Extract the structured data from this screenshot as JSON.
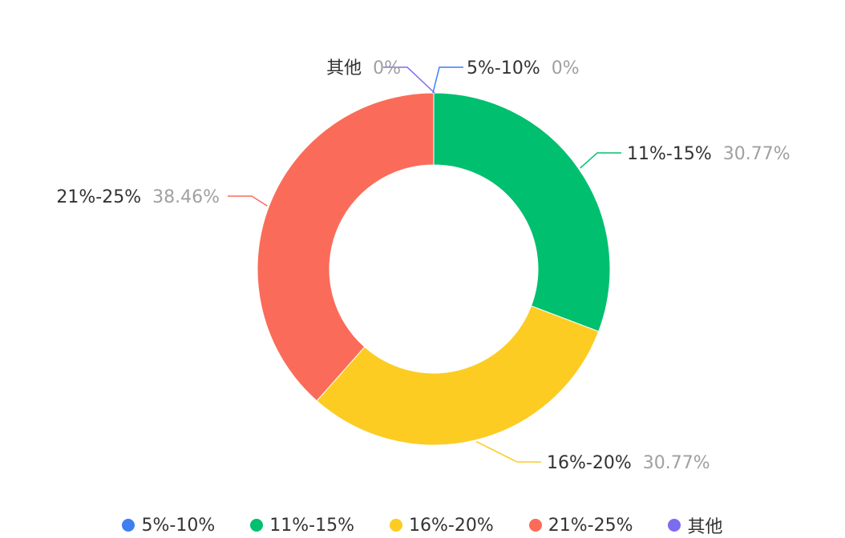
{
  "chart_data": {
    "type": "pie",
    "donut": true,
    "categories": [
      "5%-10%",
      "11%-15%",
      "16%-20%",
      "21%-25%",
      "其他"
    ],
    "values": [
      0,
      30.77,
      30.77,
      38.46,
      0
    ],
    "value_labels": [
      "0%",
      "30.77%",
      "30.77%",
      "38.46%",
      "0%"
    ],
    "colors": [
      "#3d7ff0",
      "#00bf6f",
      "#fccc23",
      "#fa6c59",
      "#7b6cf0"
    ],
    "legend": "bottom"
  }
}
